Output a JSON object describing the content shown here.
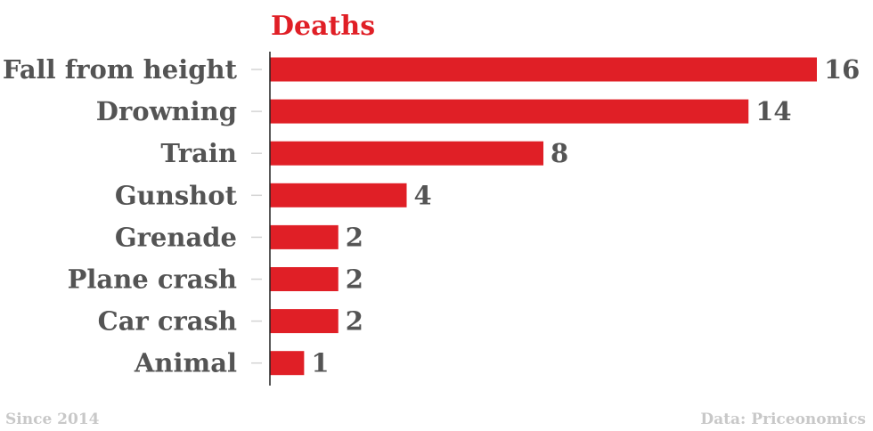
{
  "chart_data": {
    "type": "bar",
    "orientation": "horizontal",
    "title": "Deaths",
    "categories": [
      "Fall from height",
      "Drowning",
      "Train",
      "Gunshot",
      "Grenade",
      "Plane crash",
      "Car crash",
      "Animal"
    ],
    "values": [
      16,
      14,
      8,
      4,
      2,
      2,
      2,
      1
    ],
    "xlabel": "",
    "ylabel": "",
    "xlim": [
      0,
      16
    ],
    "grid": false,
    "data_labels": true
  },
  "colors": {
    "bar": "#e01f26",
    "title": "#e01f26",
    "label": "#545454",
    "footer": "#c8c8c8",
    "axis": "#222222",
    "tick": "#d4d4d4"
  },
  "footer": {
    "left": "Since 2014",
    "right": "Data: Priceonomics"
  }
}
